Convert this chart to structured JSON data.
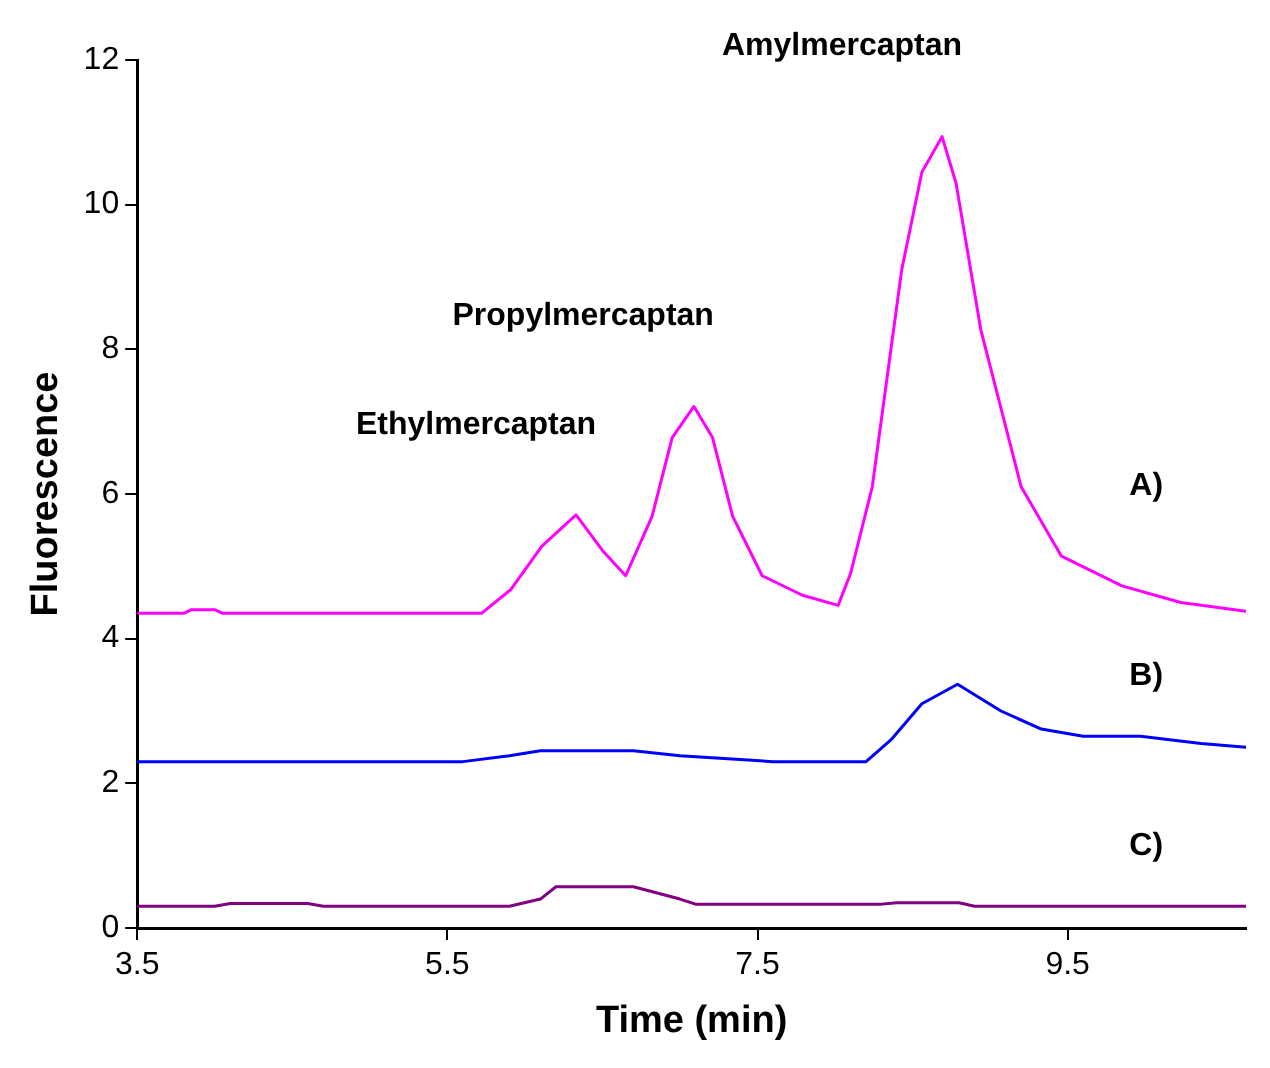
{
  "chart_data": {
    "type": "line",
    "xlabel": "Time (min)",
    "ylabel": "Fluorescence",
    "xlim": [
      3.5,
      10.65
    ],
    "xticks": [
      3.5,
      5.5,
      7.5,
      9.5
    ],
    "ylim": [
      0,
      12
    ],
    "yticks": [
      0,
      2,
      4,
      6,
      8,
      10,
      12
    ],
    "grid": false,
    "legend": false,
    "marker": "none",
    "line_style": "solid",
    "annotations": [
      {
        "text": "Ethylmercaptan",
        "x": 6.33,
        "y": 5.71
      },
      {
        "text": "Propylmercaptan",
        "x": 7.09,
        "y": 7.21
      },
      {
        "text": "Amylmercaptan",
        "x": 8.69,
        "y": 10.94
      }
    ],
    "series": [
      {
        "name": "A)",
        "color": "#ff00ff",
        "x": [
          3.5,
          3.8,
          3.85,
          4.0,
          4.05,
          5.0,
          5.72,
          5.91,
          6.11,
          6.33,
          6.5,
          6.65,
          6.82,
          6.95,
          7.09,
          7.21,
          7.34,
          7.53,
          7.79,
          8.02,
          8.1,
          8.24,
          8.43,
          8.56,
          8.69,
          8.78,
          8.94,
          9.2,
          9.46,
          9.85,
          10.23,
          10.65
        ],
        "values": [
          4.35,
          4.35,
          4.4,
          4.4,
          4.35,
          4.35,
          4.35,
          4.68,
          5.28,
          5.71,
          5.22,
          4.87,
          5.69,
          6.78,
          7.21,
          6.78,
          5.69,
          4.87,
          4.6,
          4.46,
          4.9,
          6.1,
          9.1,
          10.45,
          10.94,
          10.3,
          8.27,
          6.1,
          5.14,
          4.73,
          4.5,
          4.38
        ]
      },
      {
        "name": "B)",
        "color": "#0000ff",
        "x": [
          3.5,
          5.6,
          5.9,
          6.1,
          6.7,
          7.0,
          7.6,
          8.2,
          8.36,
          8.56,
          8.79,
          9.07,
          9.33,
          9.6,
          9.97,
          10.36,
          10.65
        ],
        "values": [
          2.3,
          2.3,
          2.38,
          2.45,
          2.45,
          2.38,
          2.3,
          2.3,
          2.6,
          3.1,
          3.37,
          3.0,
          2.75,
          2.65,
          2.65,
          2.55,
          2.5
        ]
      },
      {
        "name": "C)",
        "color": "#800080",
        "x": [
          3.5,
          4.0,
          4.1,
          4.6,
          4.7,
          5.9,
          6.1,
          6.2,
          6.7,
          7.0,
          7.1,
          8.3,
          8.4,
          8.8,
          8.9,
          10.65
        ],
        "values": [
          0.3,
          0.3,
          0.34,
          0.34,
          0.3,
          0.3,
          0.4,
          0.57,
          0.57,
          0.4,
          0.33,
          0.33,
          0.35,
          0.35,
          0.3,
          0.3
        ]
      }
    ]
  }
}
